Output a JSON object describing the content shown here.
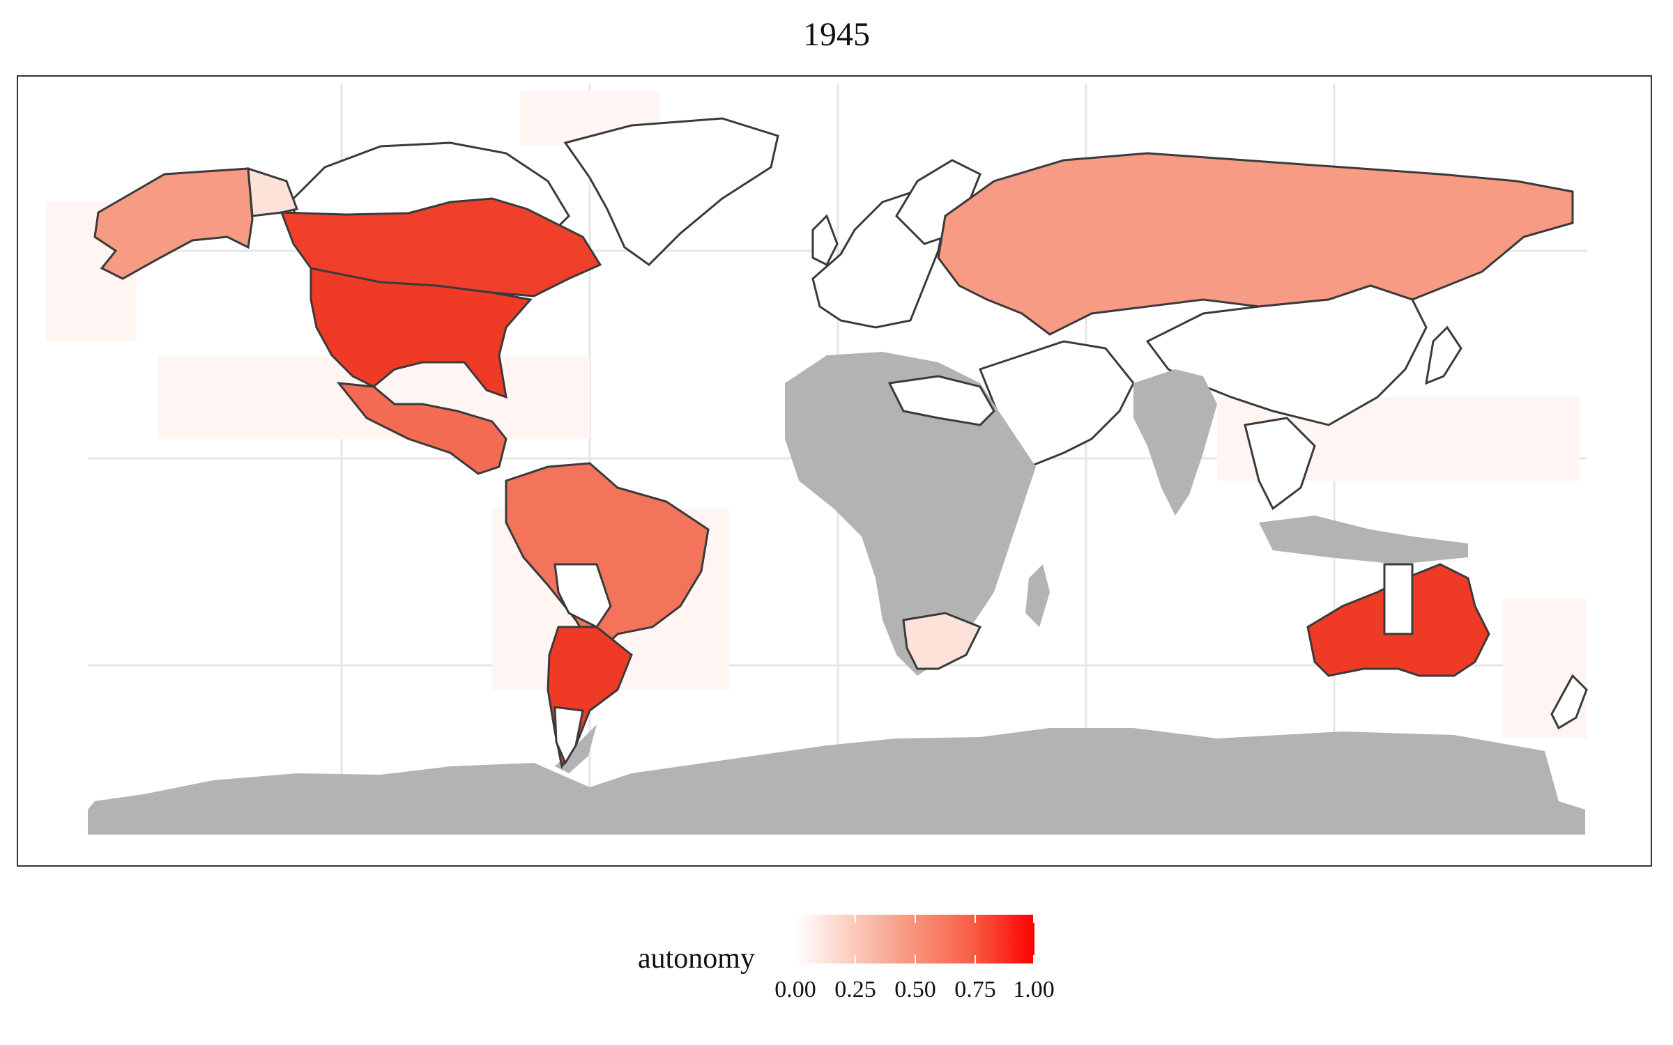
{
  "map": {
    "title": "1945",
    "legend": {
      "title": "autonomy",
      "scale": "white-to-red gradient",
      "colors": [
        "#ffffff",
        "#ff0000"
      ],
      "tick_labels": [
        "0.00",
        "0.25",
        "0.50",
        "0.75",
        "1.00"
      ]
    },
    "colors": {
      "no_data": "#b3b3b3",
      "zero": "#ffffff",
      "borders": "#3a3a3a",
      "grid": "#e6e6e6"
    }
  }
}
